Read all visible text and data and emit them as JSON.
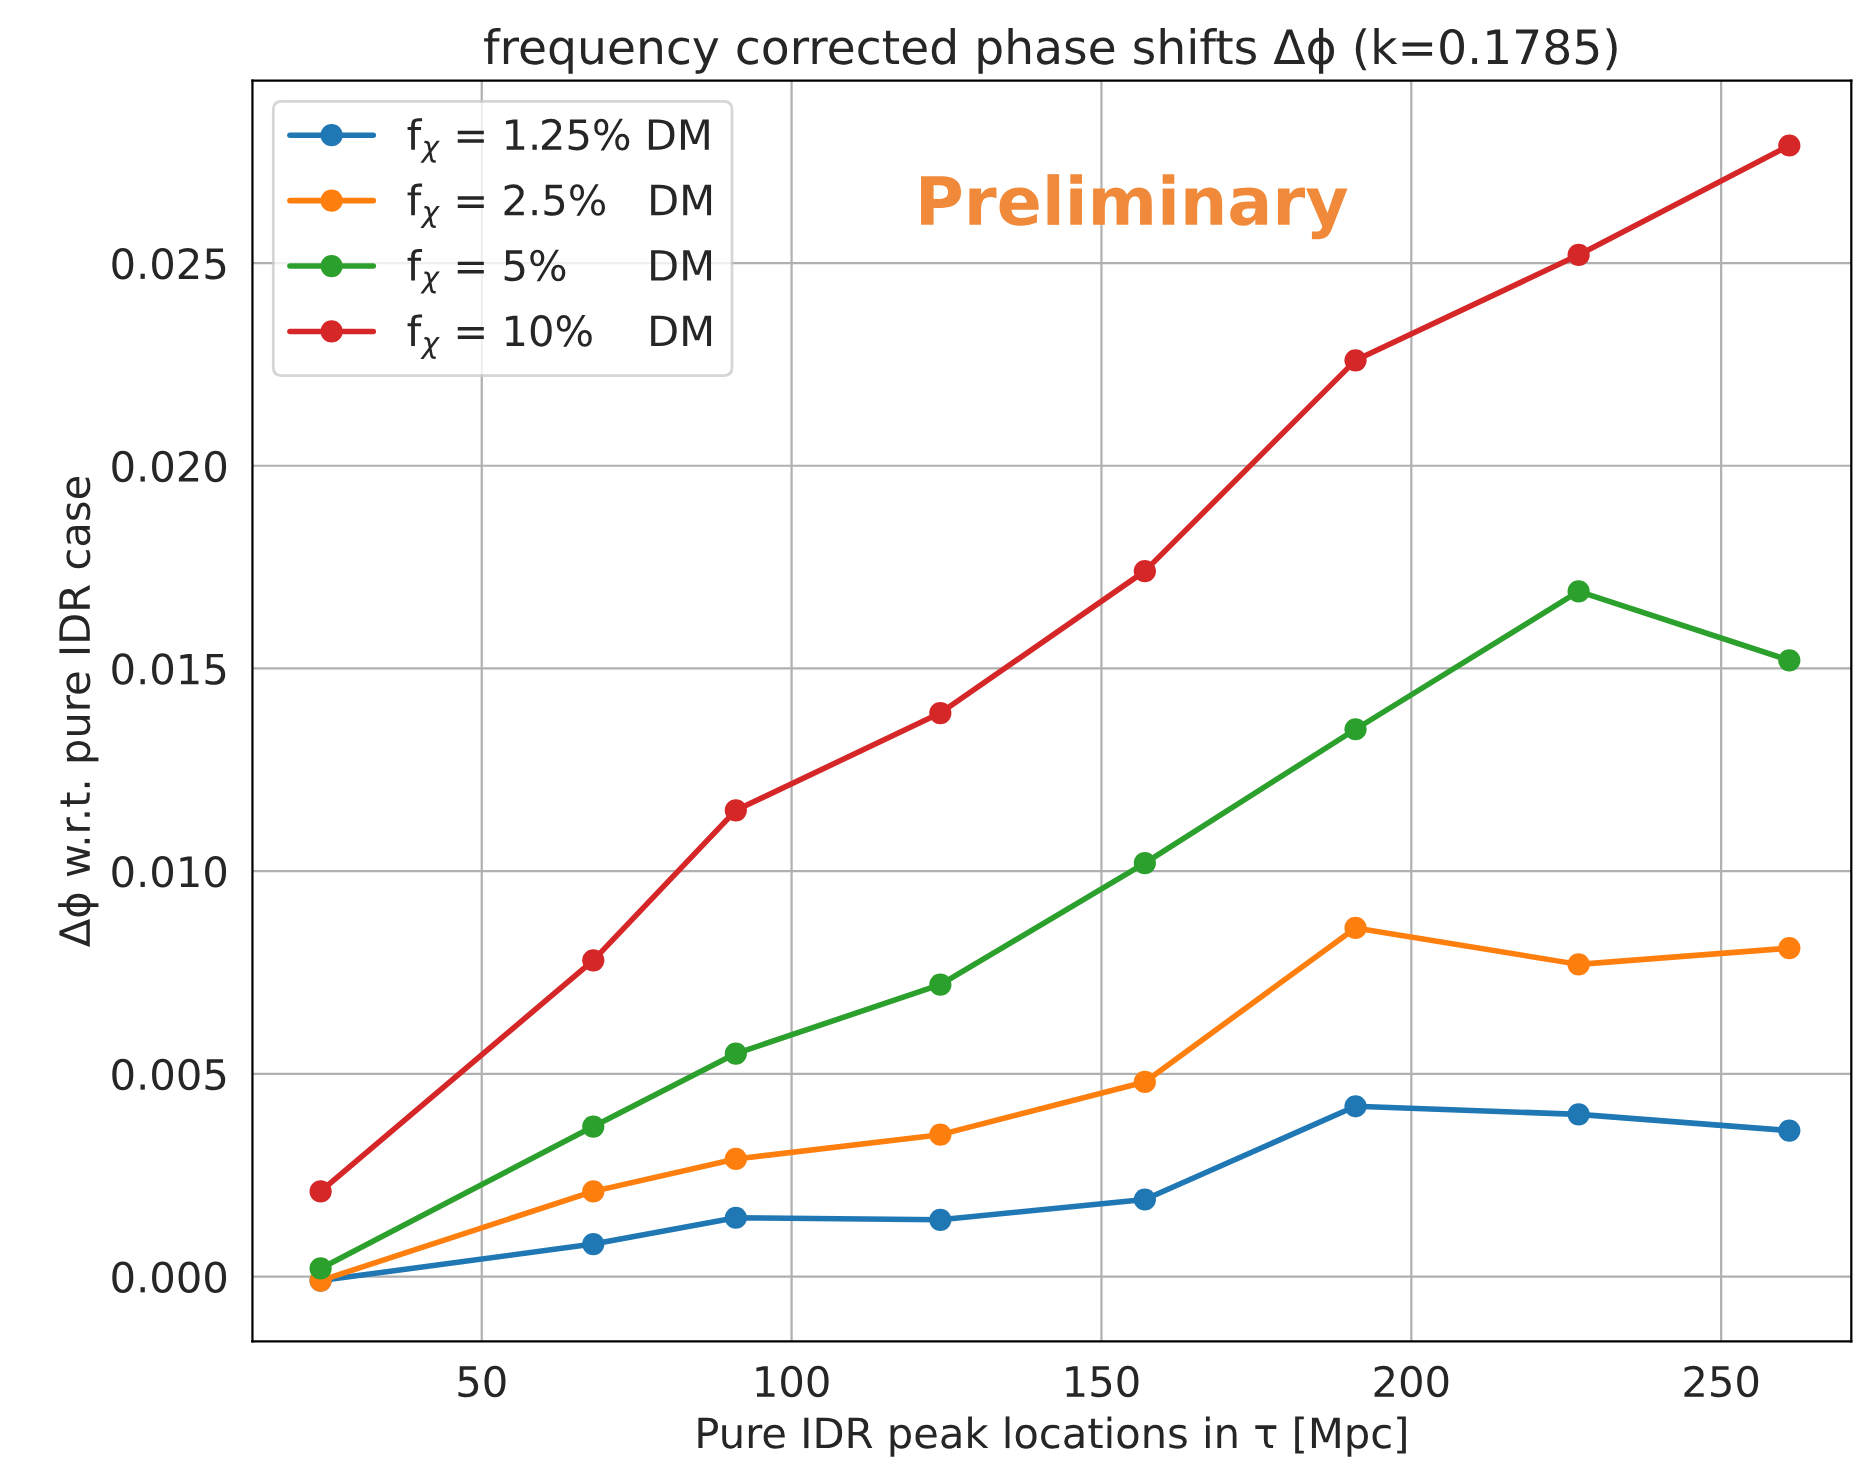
{
  "chart_data": {
    "type": "line",
    "title": "frequency corrected phase shifts Δϕ (k=0.1785)",
    "xlabel": "Pure IDR peak locations in τ [Mpc]",
    "ylabel": "Δϕ w.r.t. pure IDR case",
    "x": [
      24,
      68,
      91,
      124,
      157,
      191,
      227,
      261
    ],
    "series": [
      {
        "name": "f$_{χ}$ = 1.25% DM",
        "color": "#1f77b4",
        "values": [
          -0.0001,
          0.0008,
          0.00145,
          0.0014,
          0.0019,
          0.0042,
          0.004,
          0.0036
        ]
      },
      {
        "name": "f$_{χ}$ = 2.5%   DM",
        "color": "#ff7f0e",
        "values": [
          -0.0001,
          0.0021,
          0.0029,
          0.0035,
          0.0048,
          0.0086,
          0.0077,
          0.0081
        ]
      },
      {
        "name": "f$_{χ}$ = 5%      DM",
        "color": "#2ca02c",
        "values": [
          0.0002,
          0.0037,
          0.0055,
          0.0072,
          0.0102,
          0.0135,
          0.0169,
          0.0152
        ]
      },
      {
        "name": "f$_{χ}$ = 10%    DM",
        "color": "#d62728",
        "values": [
          0.0021,
          0.0078,
          0.0115,
          0.0139,
          0.0174,
          0.0226,
          0.0252,
          0.0279
        ]
      }
    ],
    "annotations": [
      "Preliminary"
    ],
    "xlim": [
      13,
      271
    ],
    "xticks": [
      50,
      100,
      150,
      200,
      250
    ],
    "ylim": [
      -0.0016,
      0.0295
    ],
    "yticks": [
      {
        "value": 0,
        "label": "0.000"
      },
      {
        "value": 0.005,
        "label": "0.005"
      },
      {
        "value": 0.01,
        "label": "0.010"
      },
      {
        "value": 0.015,
        "label": "0.015"
      },
      {
        "value": 0.02,
        "label": "0.020"
      },
      {
        "value": 0.025,
        "label": "0.025"
      }
    ],
    "grid": true,
    "legend": "top left",
    "marker": "circle",
    "line_style": "solid"
  }
}
